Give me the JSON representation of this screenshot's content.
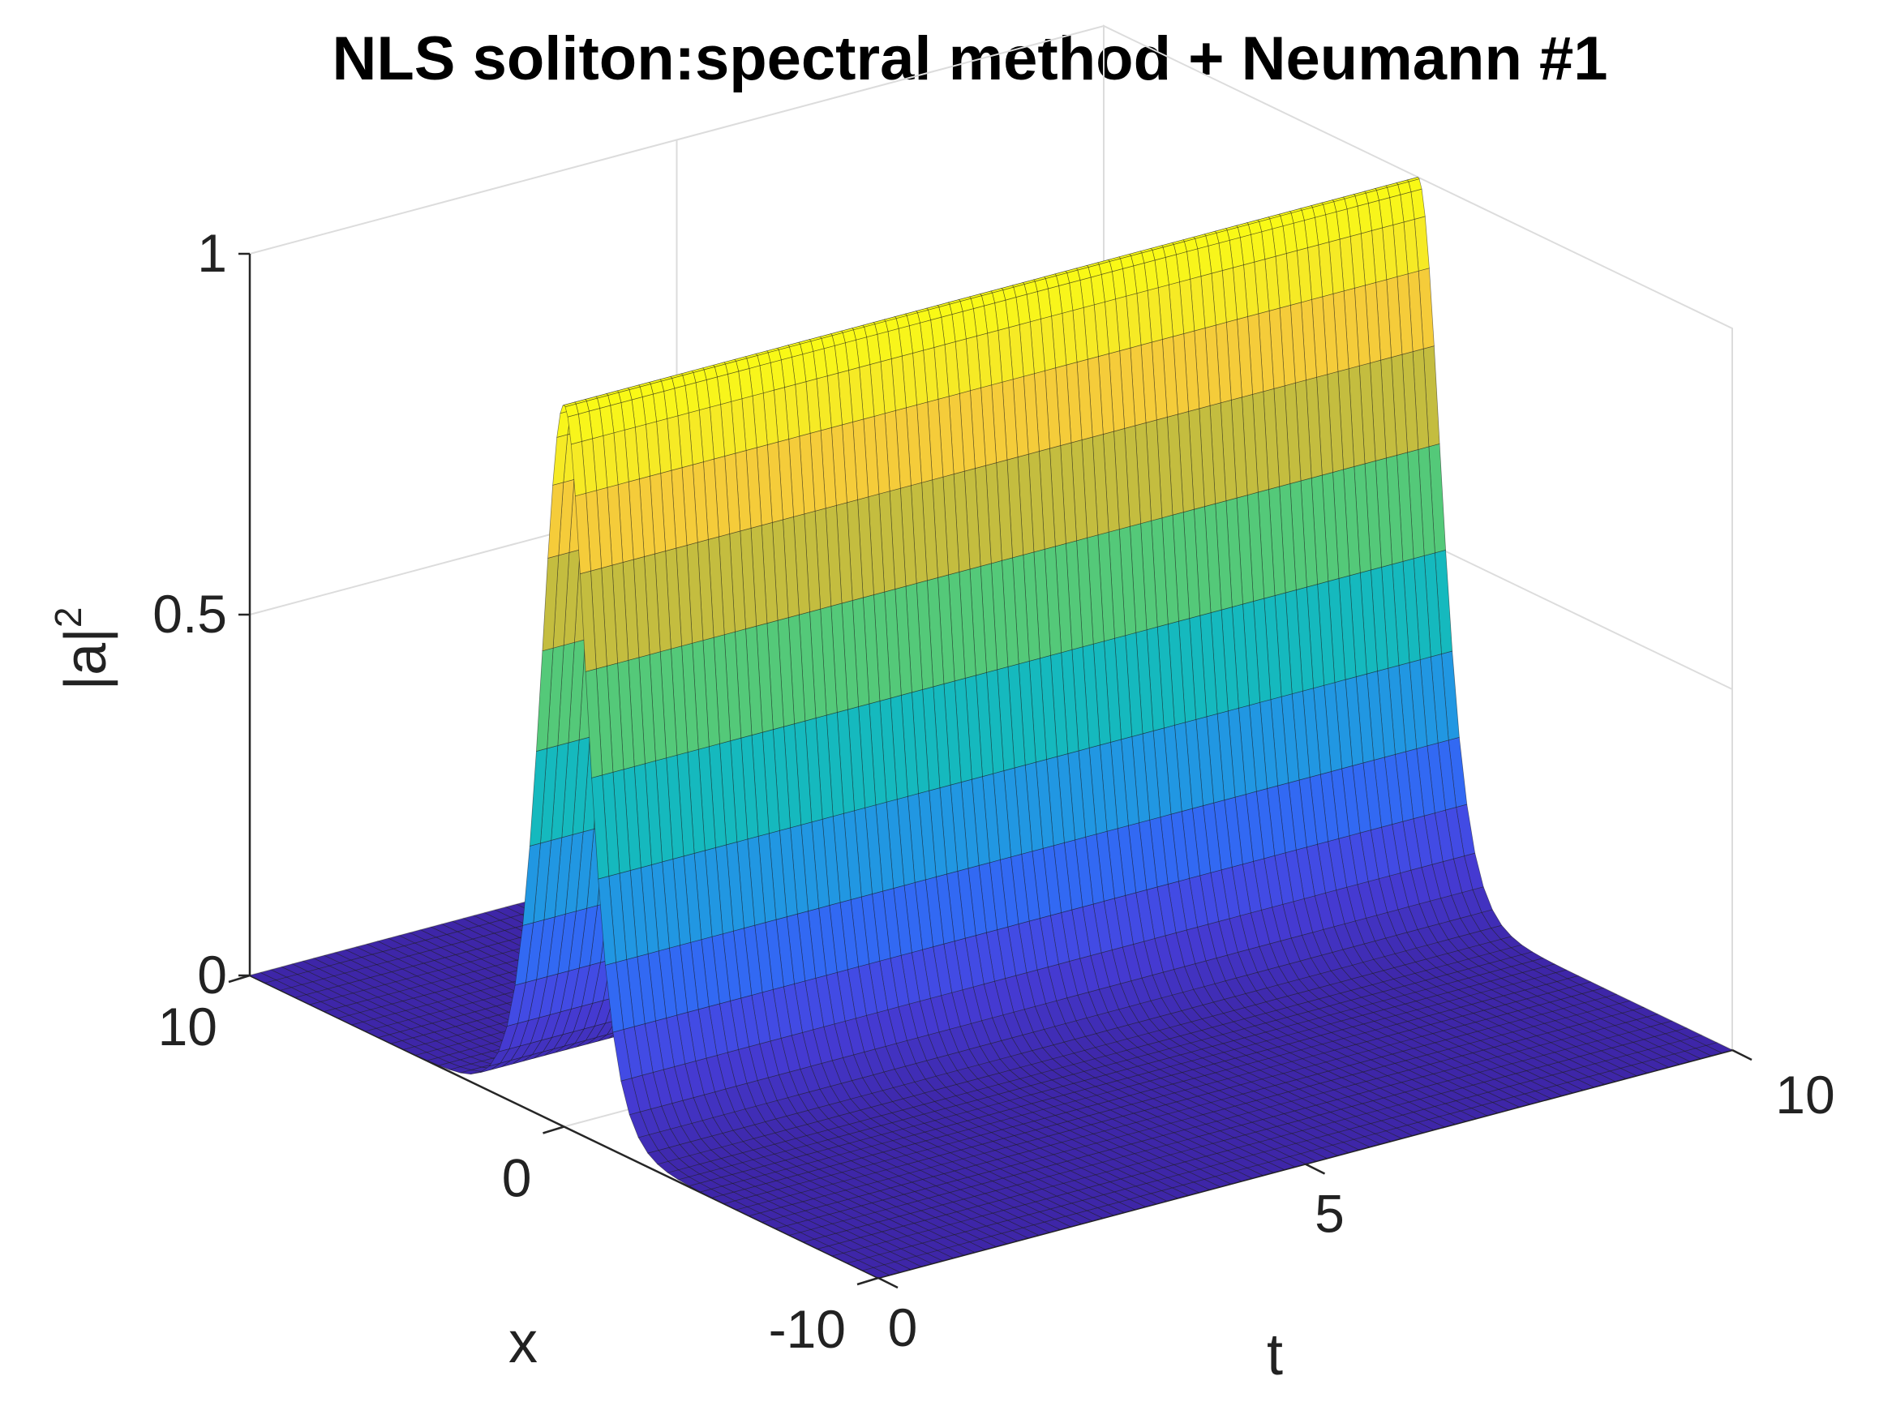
{
  "chart_data": {
    "type": "surface",
    "title": "NLS soliton:spectral method + Neumann #1",
    "xlabel": "t",
    "ylabel": "x",
    "zlabel": "|a|",
    "zlabel_superscript": "2",
    "t_range": [
      0,
      10
    ],
    "x_range": [
      -10,
      10
    ],
    "z_range": [
      0,
      1
    ],
    "t_ticks": [
      "0",
      "5",
      "10"
    ],
    "x_ticks": [
      "-10",
      "0",
      "10"
    ],
    "z_ticks": [
      "0",
      "0.5",
      "1"
    ],
    "grid": true,
    "colormap": "parula",
    "colormap_stops": [
      "#3e26a8",
      "#4742e0",
      "#2f6ff6",
      "#1da2dc",
      "#14bbbb",
      "#45cb85",
      "#a3c13a",
      "#f5b747",
      "#f5e52a",
      "#f9fb15"
    ],
    "surface": {
      "function": "sech^2(x)",
      "peak": 1,
      "peak_x": 0,
      "t_samples": 81,
      "x_samples": 256
    }
  }
}
